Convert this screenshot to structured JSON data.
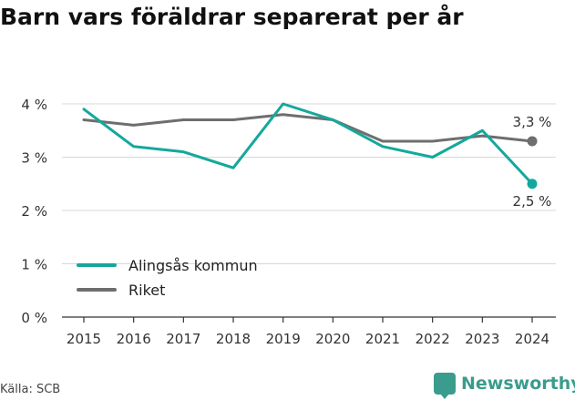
{
  "title": "Barn vars föräldrar separerat per år",
  "source": "Källa: SCB",
  "brand": {
    "name": "Newsworthy",
    "icon": "bar-chart-bubble-icon"
  },
  "colors": {
    "alingsas": "#14a89c",
    "riket": "#6e6e6e",
    "grid": "#d9d9d9",
    "axis": "#333333"
  },
  "chart_data": {
    "type": "line",
    "title": "Barn vars föräldrar separerat per år",
    "xlabel": "",
    "ylabel": "",
    "x": [
      "2015",
      "2016",
      "2017",
      "2018",
      "2019",
      "2020",
      "2021",
      "2022",
      "2023",
      "2024"
    ],
    "ylim": [
      0,
      4
    ],
    "yticks": [
      0,
      1,
      2,
      3,
      4
    ],
    "ytick_labels": [
      "0 %",
      "1 %",
      "2 %",
      "3 %",
      "4 %"
    ],
    "grid": true,
    "legend_position": "bottom-left",
    "series": [
      {
        "name": "Alingsås kommun",
        "values": [
          3.9,
          3.2,
          3.1,
          2.8,
          4.0,
          3.7,
          3.2,
          3.0,
          3.5,
          2.5
        ],
        "end_label": "2,5 %"
      },
      {
        "name": "Riket",
        "values": [
          3.7,
          3.6,
          3.7,
          3.7,
          3.8,
          3.7,
          3.3,
          3.3,
          3.4,
          3.3
        ],
        "end_label": "3,3 %"
      }
    ]
  }
}
